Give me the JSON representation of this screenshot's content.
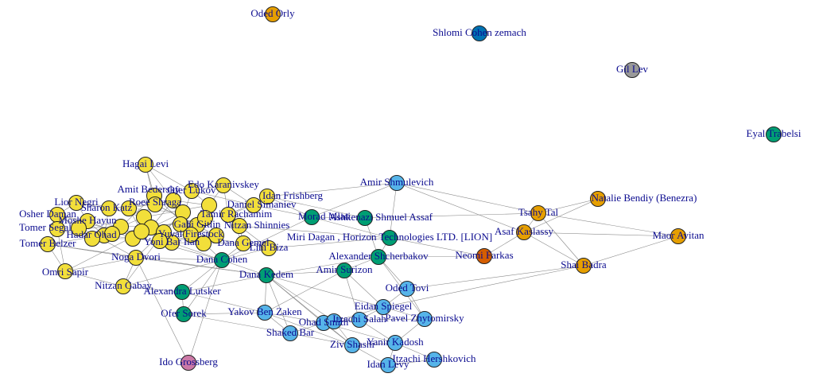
{
  "colors": {
    "yellow": "#f2df3a",
    "orange": "#e69f00",
    "green": "#009e73",
    "lightblue": "#56b4e9",
    "darkblue": "#0072b2",
    "vermilion": "#d55e00",
    "pink": "#cc79a7",
    "gray": "#999999",
    "label": "#0b0b8f"
  },
  "nodes": [
    {
      "id": "oded_orly",
      "label": "Oded Orly",
      "group": "orange"
    },
    {
      "id": "shlomi",
      "label": "Shlomi Cohen zemach",
      "group": "darkblue"
    },
    {
      "id": "gil_lev",
      "label": "Gil Lev",
      "group": "gray"
    },
    {
      "id": "eyal",
      "label": "Eyal Trabelsi",
      "group": "green"
    },
    {
      "id": "hagai",
      "label": "Hagai Levi",
      "group": "yellow"
    },
    {
      "id": "edo",
      "label": "Edo Karanivskey",
      "group": "yellow"
    },
    {
      "id": "amit_b",
      "label": "Amit Bedersky",
      "group": "yellow"
    },
    {
      "id": "lukov",
      "label": "Ofer Lukov",
      "group": "yellow"
    },
    {
      "id": "lior_n",
      "label": "Lior Negri",
      "group": "yellow"
    },
    {
      "id": "roee",
      "label": "Roee Shraga",
      "group": "yellow"
    },
    {
      "id": "sharon",
      "label": "Sharon Katz",
      "group": "yellow"
    },
    {
      "id": "osher",
      "label": "Osher Daman",
      "group": "yellow"
    },
    {
      "id": "moshe",
      "label": "Moshe Hayun",
      "group": "yellow"
    },
    {
      "id": "tomer_s",
      "label": "Tomer Segal",
      "group": "yellow"
    },
    {
      "id": "hadar",
      "label": "Hadar Ohad",
      "group": "yellow"
    },
    {
      "id": "tomer_b",
      "label": "Tomer Belzer",
      "group": "yellow"
    },
    {
      "id": "omri",
      "label": "Omri Sapir",
      "group": "yellow"
    },
    {
      "id": "noga",
      "label": "Noga Dvori",
      "group": "yellow"
    },
    {
      "id": "nitzan_g",
      "label": "Nitzan Gabay",
      "group": "yellow"
    },
    {
      "id": "gabi",
      "label": "Gabi Gitlin",
      "group": "yellow"
    },
    {
      "id": "idan_f",
      "label": "Idan Frishberg",
      "group": "yellow"
    },
    {
      "id": "simaniev",
      "label": "Daniel Simaniev",
      "group": "yellow"
    },
    {
      "id": "rachamim",
      "label": "Tamir Rachamim",
      "group": "yellow"
    },
    {
      "id": "nitzan_s",
      "label": "Nitzan Shinnies",
      "group": "yellow"
    },
    {
      "id": "firestock",
      "label": "Yuval Firestock",
      "group": "yellow"
    },
    {
      "id": "yoni_bar",
      "label": "Yoni Bar Ilan",
      "group": "yellow"
    },
    {
      "id": "gemel",
      "label": "Dana Gemel",
      "group": "yellow"
    },
    {
      "id": "c1",
      "label": "",
      "group": "yellow"
    },
    {
      "id": "c2",
      "label": "",
      "group": "yellow"
    },
    {
      "id": "c3",
      "label": "",
      "group": "yellow"
    },
    {
      "id": "c4",
      "label": "",
      "group": "yellow"
    },
    {
      "id": "c5",
      "label": "",
      "group": "yellow"
    },
    {
      "id": "c6",
      "label": "",
      "group": "yellow"
    },
    {
      "id": "c7",
      "label": "",
      "group": "yellow"
    },
    {
      "id": "c8",
      "label": "",
      "group": "yellow"
    },
    {
      "id": "c9",
      "label": "",
      "group": "yellow"
    },
    {
      "id": "c10",
      "label": "",
      "group": "yellow"
    },
    {
      "id": "c11",
      "label": "",
      "group": "yellow"
    },
    {
      "id": "c12",
      "label": "",
      "group": "yellow"
    },
    {
      "id": "c13",
      "label": "",
      "group": "yellow"
    },
    {
      "id": "c14",
      "label": "",
      "group": "yellow"
    },
    {
      "id": "c15",
      "label": "",
      "group": "yellow"
    },
    {
      "id": "c16",
      "label": "",
      "group": "yellow"
    },
    {
      "id": "c17",
      "label": "",
      "group": "yellow"
    },
    {
      "id": "c18",
      "label": "",
      "group": "yellow"
    },
    {
      "id": "lihi",
      "label": "Lihi Biza",
      "group": "yellow"
    },
    {
      "id": "dana_c",
      "label": "Dana Cohen",
      "group": "green"
    },
    {
      "id": "dana_k",
      "label": "Dana Kedem",
      "group": "green"
    },
    {
      "id": "morad",
      "label": "Morad Mlati",
      "group": "green"
    },
    {
      "id": "assaf_o",
      "label": "Ashkenazi Shmuel Assaf",
      "group": "green"
    },
    {
      "id": "miri",
      "label": "Miri Dagan , Horizon Technologies LTD. [LION]",
      "group": "green"
    },
    {
      "id": "alex_s",
      "label": "Alexander Shcherbakov",
      "group": "green"
    },
    {
      "id": "amir_s",
      "label": "Amir Surizon",
      "group": "green"
    },
    {
      "id": "alexandra",
      "label": "Alexandra Lutsker",
      "group": "green"
    },
    {
      "id": "ofer_s",
      "label": "Ofer Sorek",
      "group": "green"
    },
    {
      "id": "amir_shm",
      "label": "Amir Shmulevich",
      "group": "lightblue"
    },
    {
      "id": "oded_t",
      "label": "Oded Tovi",
      "group": "lightblue"
    },
    {
      "id": "eidan",
      "label": "Eidan Spiegel",
      "group": "lightblue"
    },
    {
      "id": "yakov",
      "label": "Yakov Ben Zaken",
      "group": "lightblue"
    },
    {
      "id": "ohad",
      "label": "Ohad Smith",
      "group": "lightblue"
    },
    {
      "id": "itzachi_s",
      "label": "Itzachi Salah",
      "group": "lightblue"
    },
    {
      "id": "pavel",
      "label": "Pavel Zhytomirsky",
      "group": "lightblue"
    },
    {
      "id": "shaked",
      "label": "Shaked Bar",
      "group": "lightblue"
    },
    {
      "id": "ziv",
      "label": "Ziv Shashi",
      "group": "lightblue"
    },
    {
      "id": "yanir",
      "label": "Yanir Kadosh",
      "group": "lightblue"
    },
    {
      "id": "idan_l",
      "label": "Idan Levy",
      "group": "lightblue"
    },
    {
      "id": "itzachi_h",
      "label": "Itzachi Hershkovich",
      "group": "lightblue"
    },
    {
      "id": "x1",
      "label": "",
      "group": "lightblue"
    },
    {
      "id": "neomi",
      "label": "Neomi Farkas",
      "group": "vermilion"
    },
    {
      "id": "ido",
      "label": "Ido Grossberg",
      "group": "pink"
    },
    {
      "id": "tsahy",
      "label": "Tsahy Tal",
      "group": "orange"
    },
    {
      "id": "asaf_k",
      "label": "Asaf Kaslassy",
      "group": "orange"
    },
    {
      "id": "natalie",
      "label": "Natalie Bendiy (Benezra)",
      "group": "orange"
    },
    {
      "id": "maor",
      "label": "Maor Avitan",
      "group": "orange"
    },
    {
      "id": "shai",
      "label": "Shai Badra",
      "group": "orange"
    }
  ],
  "edges": [
    [
      "hagai",
      "amit_b"
    ],
    [
      "hagai",
      "roee"
    ],
    [
      "hagai",
      "c2"
    ],
    [
      "hagai",
      "lukov"
    ],
    [
      "edo",
      "lukov"
    ],
    [
      "edo",
      "c3"
    ],
    [
      "edo",
      "rachamim"
    ],
    [
      "edo",
      "simaniev"
    ],
    [
      "amit_b",
      "roee"
    ],
    [
      "amit_b",
      "c1"
    ],
    [
      "amit_b",
      "c5"
    ],
    [
      "amit_b",
      "dana_c"
    ],
    [
      "lior_n",
      "sharon"
    ],
    [
      "lior_n",
      "c1"
    ],
    [
      "lior_n",
      "moshe"
    ],
    [
      "lior_n",
      "osher"
    ],
    [
      "osher",
      "moshe"
    ],
    [
      "osher",
      "tomer_s"
    ],
    [
      "osher",
      "c6"
    ],
    [
      "osher",
      "noga"
    ],
    [
      "tomer_s",
      "tomer_b"
    ],
    [
      "tomer_s",
      "hadar"
    ],
    [
      "tomer_s",
      "c7"
    ],
    [
      "tomer_s",
      "omri"
    ],
    [
      "tomer_b",
      "c8"
    ],
    [
      "tomer_b",
      "noga"
    ],
    [
      "tomer_b",
      "omri"
    ],
    [
      "omri",
      "noga"
    ],
    [
      "omri",
      "nitzan_g"
    ],
    [
      "omri",
      "c9"
    ],
    [
      "noga",
      "nitzan_g"
    ],
    [
      "noga",
      "dana_c"
    ],
    [
      "noga",
      "dana_k"
    ],
    [
      "noga",
      "c10"
    ],
    [
      "nitzan_g",
      "alexandra"
    ],
    [
      "nitzan_g",
      "dana_c"
    ],
    [
      "nitzan_g",
      "c11"
    ],
    [
      "sharon",
      "roee"
    ],
    [
      "sharon",
      "c4"
    ],
    [
      "sharon",
      "hadar"
    ],
    [
      "moshe",
      "c5"
    ],
    [
      "moshe",
      "hadar"
    ],
    [
      "moshe",
      "c12"
    ],
    [
      "hadar",
      "c13"
    ],
    [
      "hadar",
      "c14"
    ],
    [
      "roee",
      "c2"
    ],
    [
      "roee",
      "gabi"
    ],
    [
      "roee",
      "c15"
    ],
    [
      "lukov",
      "c3"
    ],
    [
      "lukov",
      "simaniev"
    ],
    [
      "lukov",
      "c16"
    ],
    [
      "gabi",
      "firestock"
    ],
    [
      "gabi",
      "c17"
    ],
    [
      "gabi",
      "yoni_bar"
    ],
    [
      "simaniev",
      "rachamim"
    ],
    [
      "simaniev",
      "nitzan_s"
    ],
    [
      "simaniev",
      "morad"
    ],
    [
      "rachamim",
      "nitzan_s"
    ],
    [
      "rachamim",
      "idan_f"
    ],
    [
      "rachamim",
      "gemel"
    ],
    [
      "nitzan_s",
      "lihi"
    ],
    [
      "nitzan_s",
      "gemel"
    ],
    [
      "nitzan_s",
      "miri"
    ],
    [
      "firestock",
      "gemel"
    ],
    [
      "firestock",
      "yoni_bar"
    ],
    [
      "firestock",
      "c18"
    ],
    [
      "yoni_bar",
      "dana_c"
    ],
    [
      "yoni_bar",
      "gemel"
    ],
    [
      "gemel",
      "lihi"
    ],
    [
      "gemel",
      "dana_c"
    ],
    [
      "lihi",
      "dana_c"
    ],
    [
      "lihi",
      "miri"
    ],
    [
      "idan_f",
      "morad"
    ],
    [
      "idan_f",
      "amir_shm"
    ],
    [
      "idan_f",
      "assaf_o"
    ],
    [
      "c1",
      "c2"
    ],
    [
      "c2",
      "c3"
    ],
    [
      "c3",
      "c4"
    ],
    [
      "c4",
      "c5"
    ],
    [
      "c5",
      "c6"
    ],
    [
      "c6",
      "c7"
    ],
    [
      "c7",
      "c8"
    ],
    [
      "c8",
      "c9"
    ],
    [
      "c9",
      "c10"
    ],
    [
      "c10",
      "c11"
    ],
    [
      "c11",
      "c12"
    ],
    [
      "c12",
      "c13"
    ],
    [
      "c13",
      "c14"
    ],
    [
      "c14",
      "c15"
    ],
    [
      "c15",
      "c16"
    ],
    [
      "c16",
      "c17"
    ],
    [
      "c17",
      "c18"
    ],
    [
      "c18",
      "c1"
    ],
    [
      "c1",
      "c10"
    ],
    [
      "c3",
      "c14"
    ],
    [
      "c5",
      "c16"
    ],
    [
      "c7",
      "c12"
    ],
    [
      "c2",
      "c9"
    ],
    [
      "c4",
      "c18"
    ],
    [
      "dana_c",
      "dana_k"
    ],
    [
      "dana_c",
      "alexandra"
    ],
    [
      "dana_c",
      "morad"
    ],
    [
      "dana_c",
      "ofer_s"
    ],
    [
      "dana_k",
      "amir_s"
    ],
    [
      "dana_k",
      "alex_s"
    ],
    [
      "dana_k",
      "yakov"
    ],
    [
      "dana_k",
      "shaked"
    ],
    [
      "dana_k",
      "ohad"
    ],
    [
      "dana_k",
      "eidan"
    ],
    [
      "dana_k",
      "x1"
    ],
    [
      "dana_k",
      "ziv"
    ],
    [
      "morad",
      "assaf_o"
    ],
    [
      "morad",
      "miri"
    ],
    [
      "morad",
      "amir_shm"
    ],
    [
      "assaf_o",
      "tsahy"
    ],
    [
      "assaf_o",
      "alex_s"
    ],
    [
      "miri",
      "alex_s"
    ],
    [
      "miri",
      "neomi"
    ],
    [
      "alex_s",
      "amir_s"
    ],
    [
      "alex_s",
      "neomi"
    ],
    [
      "alex_s",
      "oded_t"
    ],
    [
      "alex_s",
      "pavel"
    ],
    [
      "amir_s",
      "yakov"
    ],
    [
      "amir_s",
      "eidan"
    ],
    [
      "amir_s",
      "itzachi_s"
    ],
    [
      "alexandra",
      "ofer_s"
    ],
    [
      "alexandra",
      "yakov"
    ],
    [
      "alexandra",
      "dana_k"
    ],
    [
      "ofer_s",
      "yakov"
    ],
    [
      "ofer_s",
      "shaked"
    ],
    [
      "amir_shm",
      "tsahy"
    ],
    [
      "amir_shm",
      "asaf_k"
    ],
    [
      "amir_shm",
      "miri"
    ],
    [
      "tsahy",
      "asaf_k"
    ],
    [
      "tsahy",
      "natalie"
    ],
    [
      "tsahy",
      "maor"
    ],
    [
      "tsahy",
      "shai"
    ],
    [
      "asaf_k",
      "shai"
    ],
    [
      "asaf_k",
      "neomi"
    ],
    [
      "asaf_k",
      "maor"
    ],
    [
      "asaf_k",
      "natalie"
    ],
    [
      "shai",
      "maor"
    ],
    [
      "shai",
      "oded_t"
    ],
    [
      "shai",
      "eidan"
    ],
    [
      "oded_t",
      "eidan"
    ],
    [
      "oded_t",
      "pavel"
    ],
    [
      "eidan",
      "itzachi_s"
    ],
    [
      "eidan",
      "pavel"
    ],
    [
      "eidan",
      "x1"
    ],
    [
      "yakov",
      "shaked"
    ],
    [
      "yakov",
      "ohad"
    ],
    [
      "yakov",
      "ziv"
    ],
    [
      "ohad",
      "x1"
    ],
    [
      "ohad",
      "itzachi_s"
    ],
    [
      "ohad",
      "ziv"
    ],
    [
      "ohad",
      "yanir"
    ],
    [
      "x1",
      "itzachi_s"
    ],
    [
      "x1",
      "ziv"
    ],
    [
      "itzachi_s",
      "pavel"
    ],
    [
      "itzachi_s",
      "yanir"
    ],
    [
      "shaked",
      "ziv"
    ],
    [
      "shaked",
      "ohad"
    ],
    [
      "ziv",
      "yanir"
    ],
    [
      "ziv",
      "idan_l"
    ],
    [
      "yanir",
      "idan_l"
    ],
    [
      "yanir",
      "itzachi_h"
    ],
    [
      "idan_l",
      "itzachi_h"
    ],
    [
      "pavel",
      "yanir"
    ],
    [
      "ido",
      "dana_c"
    ],
    [
      "ido",
      "noga"
    ],
    [
      "tomer_b",
      "dana_k"
    ],
    [
      "osher",
      "dana_c"
    ]
  ]
}
